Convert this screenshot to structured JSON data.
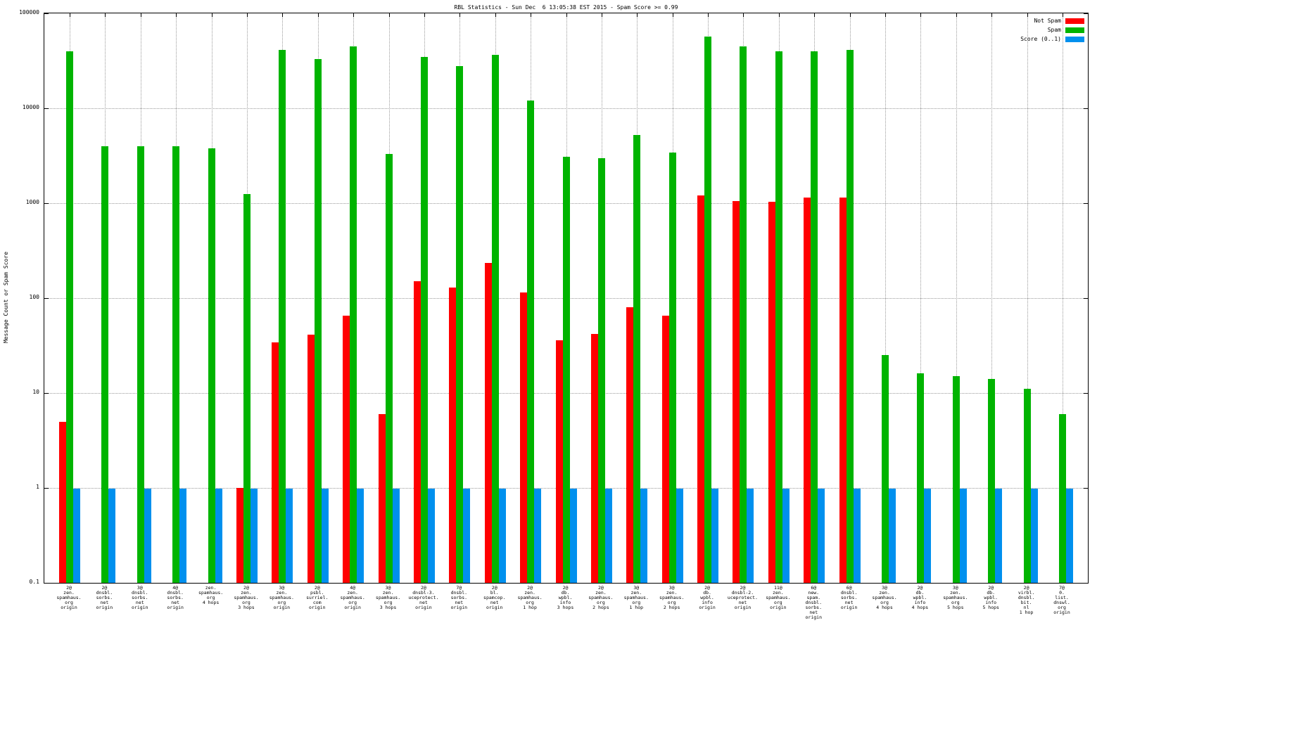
{
  "title": "RBL Statistics - Sun Dec  6 13:05:38 EST 2015 - Spam Score >= 0.99",
  "ylabel": "Message Count or Spam Score",
  "colors": {
    "not_spam": "#ff0000",
    "spam": "#00b400",
    "score": "#0090ee",
    "grid": "#9a9a9a"
  },
  "legend": [
    {
      "label": "Not Spam",
      "color": "#ff0000"
    },
    {
      "label": "Spam",
      "color": "#00b400"
    },
    {
      "label": "Score (0..1)",
      "color": "#0090ee"
    }
  ],
  "chart_data": {
    "type": "bar",
    "scale": "log",
    "ylim": [
      0.1,
      100000
    ],
    "yticks": [
      "0.1",
      "1",
      "10",
      "100",
      "1000",
      "10000",
      "100000"
    ],
    "grid": true,
    "legend_position": "top-right",
    "categories": [
      [
        "2@",
        "zen.",
        "spamhaus.",
        "org",
        "origin"
      ],
      [
        "2@",
        "dnsbl.",
        "sorbs.",
        "net",
        "origin"
      ],
      [
        "3@",
        "dnsbl.",
        "sorbs.",
        "net",
        "origin"
      ],
      [
        "4@",
        "dnsbl.",
        "sorbs.",
        "net",
        "origin"
      ],
      [
        "zen.",
        "spamhaus.",
        "org",
        "4 hops"
      ],
      [
        "2@",
        "zen.",
        "spamhaus.",
        "org",
        "3 hops"
      ],
      [
        "3@",
        "zen.",
        "spamhaus.",
        "org",
        "origin"
      ],
      [
        "2@",
        "psbl.",
        "surriel.",
        "com",
        "origin"
      ],
      [
        "4@",
        "zen.",
        "spamhaus.",
        "org",
        "origin"
      ],
      [
        "3@",
        "zen.",
        "spamhaus.",
        "org",
        "3 hops"
      ],
      [
        "2@",
        "dnsbl-3.",
        "uceprotect.",
        "net",
        "origin"
      ],
      [
        "7@",
        "dnsbl.",
        "sorbs.",
        "net",
        "origin"
      ],
      [
        "2@",
        "bl.",
        "spamcop.",
        "net",
        "origin"
      ],
      [
        "2@",
        "zen.",
        "spamhaus.",
        "org",
        "1 hop"
      ],
      [
        "2@",
        "db.",
        "wpbl.",
        "info",
        "3 hops"
      ],
      [
        "2@",
        "zen.",
        "spamhaus.",
        "org",
        "2 hops"
      ],
      [
        "3@",
        "zen.",
        "spamhaus.",
        "org",
        "1 hop"
      ],
      [
        "3@",
        "zen.",
        "spamhaus.",
        "org",
        "2 hops"
      ],
      [
        "2@",
        "db.",
        "wpbl.",
        "info",
        "origin"
      ],
      [
        "2@",
        "dnsbl-2.",
        "uceprotect.",
        "net",
        "origin"
      ],
      [
        "11@",
        "zen.",
        "spamhaus.",
        "org",
        "origin"
      ],
      [
        "6@",
        "new.",
        "spam.",
        "dnsbl.",
        "sorbs.",
        "net",
        "origin"
      ],
      [
        "6@",
        "dnsbl.",
        "sorbs.",
        "net",
        "origin"
      ],
      [
        "3@",
        "zen.",
        "spamhaus.",
        "org",
        "4 hops"
      ],
      [
        "2@",
        "db.",
        "wpbl.",
        "info",
        "4 hops"
      ],
      [
        "3@",
        "zen.",
        "spamhaus.",
        "org",
        "5 hops"
      ],
      [
        "2@",
        "db.",
        "wpbl.",
        "info",
        "5 hops"
      ],
      [
        "2@",
        "virbl.",
        "dnsbl.",
        "bit.",
        "nl",
        "1 hop"
      ],
      [
        "7@",
        "0.",
        "list.",
        "dnswl.",
        "org",
        "origin"
      ]
    ],
    "series": [
      {
        "name": "Not Spam",
        "color": "#ff0000",
        "values": [
          5,
          null,
          null,
          null,
          null,
          1,
          34,
          41,
          65,
          6,
          150,
          130,
          235,
          115,
          36,
          42,
          80,
          65,
          1200,
          1050,
          1030,
          1150,
          1150,
          null,
          null,
          null,
          null,
          null,
          null
        ]
      },
      {
        "name": "Spam",
        "color": "#00b400",
        "values": [
          40000,
          4000,
          4000,
          4000,
          3800,
          1250,
          41000,
          33000,
          45000,
          3300,
          35000,
          28000,
          36500,
          12000,
          3100,
          3000,
          5200,
          3400,
          57000,
          45000,
          40000,
          40000,
          41000,
          25,
          16,
          15,
          14,
          11,
          6
        ]
      },
      {
        "name": "Score (0..1)",
        "color": "#0090ee",
        "values": [
          0.99,
          0.99,
          0.99,
          0.99,
          0.99,
          0.99,
          0.99,
          0.99,
          0.99,
          0.99,
          0.99,
          0.99,
          0.99,
          0.99,
          0.99,
          0.99,
          0.99,
          0.99,
          0.99,
          0.99,
          0.99,
          0.99,
          0.99,
          0.99,
          0.99,
          0.99,
          0.99,
          0.99,
          0.99
        ]
      }
    ]
  }
}
